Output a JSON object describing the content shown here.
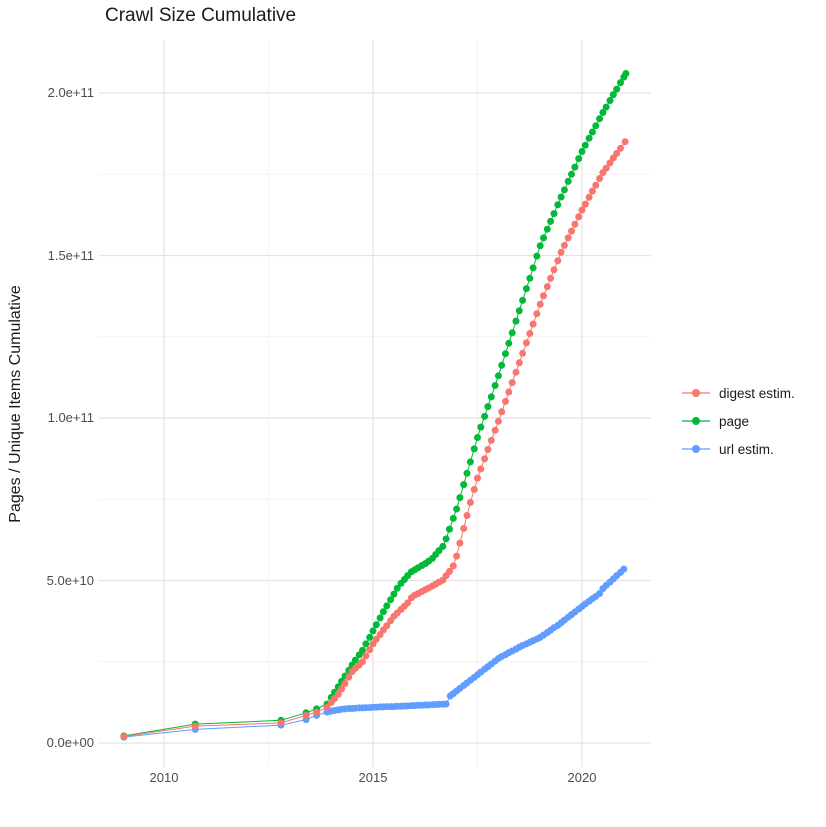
{
  "title": "Crawl Size Cumulative",
  "y_axis": {
    "title": "Pages / Unique Items Cumulative",
    "ticks": [
      "0.0e+00",
      "5.0e+10",
      "1.0e+11",
      "1.5e+11",
      "2.0e+11"
    ]
  },
  "x_axis": {
    "ticks": [
      "2010",
      "2015",
      "2020"
    ]
  },
  "legend": {
    "items": [
      {
        "label": "digest estim.",
        "color": "#F8766D"
      },
      {
        "label": "page",
        "color": "#00BA38"
      },
      {
        "label": "url estim.",
        "color": "#619CFF"
      }
    ]
  },
  "chart_data": {
    "type": "scatter",
    "title": "Crawl Size Cumulative",
    "xlabel": "",
    "ylabel": "Pages / Unique Items Cumulative",
    "x_unit": "calendar year (decimal)",
    "values_unit": "billions of items (1e9)",
    "x_ticks": [
      2010,
      2015,
      2020
    ],
    "y_ticks_billions": [
      0,
      50,
      100,
      150,
      200
    ],
    "y_tick_labels": [
      "0.0e+00",
      "5.0e+10",
      "1.0e+11",
      "1.5e+11",
      "2.0e+11"
    ],
    "xlim": [
      2008.6,
      2021.6
    ],
    "ylim": [
      0,
      206000000000.0
    ],
    "grid": true,
    "legend_position": "right",
    "series": [
      {
        "name": "digest estim.",
        "color": "#F8766D",
        "points": [
          [
            2009.04,
            2.0
          ],
          [
            2010.75,
            5.2
          ],
          [
            2012.8,
            6.2
          ],
          [
            2013.4,
            8.5
          ],
          [
            2013.65,
            9.5
          ],
          [
            2013.9,
            11
          ],
          [
            2014.0,
            12.5
          ],
          [
            2014.08,
            13.7
          ],
          [
            2014.17,
            15
          ],
          [
            2014.25,
            16.6
          ],
          [
            2014.33,
            18.3
          ],
          [
            2014.42,
            20.3
          ],
          [
            2014.5,
            22
          ],
          [
            2014.58,
            23
          ],
          [
            2014.67,
            24
          ],
          [
            2014.75,
            25
          ],
          [
            2014.83,
            26.8
          ],
          [
            2014.92,
            28.7
          ],
          [
            2015.0,
            30.5
          ],
          [
            2015.08,
            31.9
          ],
          [
            2015.17,
            33.4
          ],
          [
            2015.25,
            34.8
          ],
          [
            2015.33,
            36.1
          ],
          [
            2015.42,
            37.6
          ],
          [
            2015.5,
            39
          ],
          [
            2015.58,
            40
          ],
          [
            2015.67,
            41.1
          ],
          [
            2015.75,
            42.1
          ],
          [
            2015.83,
            43.1
          ],
          [
            2015.92,
            44.7
          ],
          [
            2016.0,
            45.5
          ],
          [
            2016.08,
            46
          ],
          [
            2016.17,
            46.6
          ],
          [
            2016.25,
            47.2
          ],
          [
            2016.33,
            47.7
          ],
          [
            2016.42,
            48.3
          ],
          [
            2016.5,
            48.9
          ],
          [
            2016.58,
            49.5
          ],
          [
            2016.67,
            50.1
          ],
          [
            2016.75,
            51.5
          ],
          [
            2016.83,
            52.8
          ],
          [
            2016.92,
            54.5
          ],
          [
            2017.0,
            57.5
          ],
          [
            2017.08,
            61.5
          ],
          [
            2017.17,
            66
          ],
          [
            2017.25,
            70
          ],
          [
            2017.33,
            74
          ],
          [
            2017.42,
            78
          ],
          [
            2017.5,
            81.5
          ],
          [
            2017.58,
            84.3
          ],
          [
            2017.67,
            87.4
          ],
          [
            2017.75,
            90.3
          ],
          [
            2017.83,
            93.1
          ],
          [
            2017.92,
            96.2
          ],
          [
            2018.0,
            99
          ],
          [
            2018.08,
            101.9
          ],
          [
            2018.17,
            105.1
          ],
          [
            2018.25,
            108
          ],
          [
            2018.33,
            110.9
          ],
          [
            2018.42,
            114.1
          ],
          [
            2018.5,
            117
          ],
          [
            2018.58,
            119.9
          ],
          [
            2018.67,
            123.1
          ],
          [
            2018.75,
            126
          ],
          [
            2018.83,
            128.9
          ],
          [
            2018.92,
            132.1
          ],
          [
            2019.0,
            135
          ],
          [
            2019.08,
            137.6
          ],
          [
            2019.17,
            140.4
          ],
          [
            2019.25,
            143
          ],
          [
            2019.33,
            145.6
          ],
          [
            2019.42,
            148.4
          ],
          [
            2019.5,
            151
          ],
          [
            2019.58,
            153.1
          ],
          [
            2019.67,
            155.4
          ],
          [
            2019.75,
            157.5
          ],
          [
            2019.83,
            159.6
          ],
          [
            2019.92,
            161.9
          ],
          [
            2020.0,
            164
          ],
          [
            2020.08,
            165.8
          ],
          [
            2020.17,
            167.9
          ],
          [
            2020.25,
            169.8
          ],
          [
            2020.33,
            171.6
          ],
          [
            2020.42,
            173.7
          ],
          [
            2020.5,
            175.5
          ],
          [
            2020.58,
            176.9
          ],
          [
            2020.67,
            178.5
          ],
          [
            2020.75,
            180
          ],
          [
            2020.83,
            181.4
          ],
          [
            2020.92,
            183
          ],
          [
            2021.03,
            185
          ]
        ]
      },
      {
        "name": "page",
        "color": "#00BA38",
        "points": [
          [
            2009.04,
            2.2
          ],
          [
            2010.75,
            5.8
          ],
          [
            2012.8,
            7.0
          ],
          [
            2013.4,
            9.3
          ],
          [
            2013.65,
            10.5
          ],
          [
            2013.9,
            12
          ],
          [
            2014.0,
            14
          ],
          [
            2014.08,
            15.6
          ],
          [
            2014.17,
            17.3
          ],
          [
            2014.25,
            19
          ],
          [
            2014.33,
            20.6
          ],
          [
            2014.42,
            22.4
          ],
          [
            2014.5,
            24
          ],
          [
            2014.58,
            25.5
          ],
          [
            2014.67,
            27.1
          ],
          [
            2014.75,
            28.5
          ],
          [
            2014.83,
            30.5
          ],
          [
            2014.92,
            32.5
          ],
          [
            2015.0,
            34.5
          ],
          [
            2015.08,
            36.4
          ],
          [
            2015.17,
            38.5
          ],
          [
            2015.25,
            40.4
          ],
          [
            2015.33,
            42.2
          ],
          [
            2015.42,
            44.1
          ],
          [
            2015.5,
            45.8
          ],
          [
            2015.58,
            47.6
          ],
          [
            2015.67,
            49.1
          ],
          [
            2015.75,
            50.3
          ],
          [
            2015.83,
            51.5
          ],
          [
            2015.92,
            52.7
          ],
          [
            2016.0,
            53.3
          ],
          [
            2016.08,
            53.9
          ],
          [
            2016.17,
            54.6
          ],
          [
            2016.25,
            55.2
          ],
          [
            2016.33,
            55.9
          ],
          [
            2016.42,
            56.8
          ],
          [
            2016.5,
            58
          ],
          [
            2016.58,
            59.2
          ],
          [
            2016.67,
            60.5
          ],
          [
            2016.75,
            62.8
          ],
          [
            2016.83,
            65.8
          ],
          [
            2016.92,
            69.1
          ],
          [
            2017.0,
            72
          ],
          [
            2017.08,
            75.5
          ],
          [
            2017.17,
            79.5
          ],
          [
            2017.25,
            83
          ],
          [
            2017.33,
            86.5
          ],
          [
            2017.42,
            90.5
          ],
          [
            2017.5,
            94
          ],
          [
            2017.58,
            97.2
          ],
          [
            2017.67,
            100.5
          ],
          [
            2017.75,
            103.5
          ],
          [
            2017.83,
            106.5
          ],
          [
            2017.92,
            110
          ],
          [
            2018.0,
            113
          ],
          [
            2018.08,
            116.2
          ],
          [
            2018.17,
            119.8
          ],
          [
            2018.25,
            123
          ],
          [
            2018.33,
            126.2
          ],
          [
            2018.42,
            129.8
          ],
          [
            2018.5,
            133
          ],
          [
            2018.58,
            136.2
          ],
          [
            2018.67,
            139.8
          ],
          [
            2018.75,
            143
          ],
          [
            2018.83,
            146.2
          ],
          [
            2018.92,
            149.8
          ],
          [
            2019.0,
            153
          ],
          [
            2019.08,
            155.4
          ],
          [
            2019.17,
            158.1
          ],
          [
            2019.25,
            160.5
          ],
          [
            2019.33,
            162.9
          ],
          [
            2019.42,
            165.6
          ],
          [
            2019.5,
            168
          ],
          [
            2019.58,
            170.2
          ],
          [
            2019.67,
            172.8
          ],
          [
            2019.75,
            175
          ],
          [
            2019.83,
            177.2
          ],
          [
            2019.92,
            179.8
          ],
          [
            2020.0,
            182
          ],
          [
            2020.08,
            183.9
          ],
          [
            2020.17,
            186.1
          ],
          [
            2020.25,
            188
          ],
          [
            2020.33,
            189.9
          ],
          [
            2020.42,
            192.1
          ],
          [
            2020.5,
            194
          ],
          [
            2020.58,
            195.7
          ],
          [
            2020.67,
            197.7
          ],
          [
            2020.75,
            199.5
          ],
          [
            2020.83,
            201.2
          ],
          [
            2020.92,
            203.2
          ],
          [
            2021.0,
            204.9
          ],
          [
            2021.05,
            206
          ]
        ]
      },
      {
        "name": "url estim.",
        "color": "#619CFF",
        "points": [
          [
            2009.04,
            1.8
          ],
          [
            2010.75,
            4.2
          ],
          [
            2012.8,
            5.5
          ],
          [
            2013.4,
            7.2
          ],
          [
            2013.65,
            8.5
          ],
          [
            2013.9,
            9.5
          ],
          [
            2014.0,
            9.8
          ],
          [
            2014.08,
            10
          ],
          [
            2014.17,
            10.2
          ],
          [
            2014.25,
            10.4
          ],
          [
            2014.33,
            10.5
          ],
          [
            2014.42,
            10.6
          ],
          [
            2014.5,
            10.6
          ],
          [
            2014.58,
            10.7
          ],
          [
            2014.67,
            10.8
          ],
          [
            2014.75,
            10.8
          ],
          [
            2014.83,
            10.9
          ],
          [
            2014.92,
            10.9
          ],
          [
            2015.0,
            11
          ],
          [
            2015.08,
            11
          ],
          [
            2015.17,
            11.1
          ],
          [
            2015.25,
            11.1
          ],
          [
            2015.33,
            11.2
          ],
          [
            2015.42,
            11.2
          ],
          [
            2015.5,
            11.2
          ],
          [
            2015.58,
            11.3
          ],
          [
            2015.67,
            11.3
          ],
          [
            2015.75,
            11.4
          ],
          [
            2015.83,
            11.4
          ],
          [
            2015.92,
            11.5
          ],
          [
            2016.0,
            11.5
          ],
          [
            2016.08,
            11.6
          ],
          [
            2016.17,
            11.6
          ],
          [
            2016.25,
            11.7
          ],
          [
            2016.33,
            11.7
          ],
          [
            2016.42,
            11.8
          ],
          [
            2016.5,
            11.8
          ],
          [
            2016.58,
            11.9
          ],
          [
            2016.67,
            11.9
          ],
          [
            2016.75,
            12
          ],
          [
            2016.85,
            14.5
          ],
          [
            2016.92,
            15.2
          ],
          [
            2017.0,
            16
          ],
          [
            2017.08,
            16.8
          ],
          [
            2017.17,
            17.7
          ],
          [
            2017.25,
            18.5
          ],
          [
            2017.33,
            19.3
          ],
          [
            2017.42,
            20.2
          ],
          [
            2017.5,
            21
          ],
          [
            2017.58,
            21.8
          ],
          [
            2017.67,
            22.7
          ],
          [
            2017.75,
            23.5
          ],
          [
            2017.83,
            24.3
          ],
          [
            2017.92,
            25.2
          ],
          [
            2018.0,
            26
          ],
          [
            2018.08,
            26.6
          ],
          [
            2018.17,
            27.2
          ],
          [
            2018.25,
            27.8
          ],
          [
            2018.33,
            28.3
          ],
          [
            2018.42,
            28.9
          ],
          [
            2018.5,
            29.5
          ],
          [
            2018.58,
            30
          ],
          [
            2018.67,
            30.5
          ],
          [
            2018.75,
            31
          ],
          [
            2018.83,
            31.5
          ],
          [
            2018.92,
            32
          ],
          [
            2019.0,
            32.5
          ],
          [
            2019.08,
            33.2
          ],
          [
            2019.17,
            34
          ],
          [
            2019.25,
            34.7
          ],
          [
            2019.33,
            35.5
          ],
          [
            2019.42,
            36.2
          ],
          [
            2019.5,
            37
          ],
          [
            2019.58,
            37.8
          ],
          [
            2019.67,
            38.7
          ],
          [
            2019.75,
            39.5
          ],
          [
            2019.83,
            40.3
          ],
          [
            2019.92,
            41.2
          ],
          [
            2020.0,
            42
          ],
          [
            2020.08,
            42.8
          ],
          [
            2020.17,
            43.6
          ],
          [
            2020.25,
            44.4
          ],
          [
            2020.33,
            45.1
          ],
          [
            2020.42,
            46
          ],
          [
            2020.5,
            47.5
          ],
          [
            2020.58,
            48.5
          ],
          [
            2020.67,
            49.5
          ],
          [
            2020.75,
            50.5
          ],
          [
            2020.83,
            51.5
          ],
          [
            2020.92,
            52.5
          ],
          [
            2021.0,
            53.5
          ]
        ]
      }
    ]
  }
}
